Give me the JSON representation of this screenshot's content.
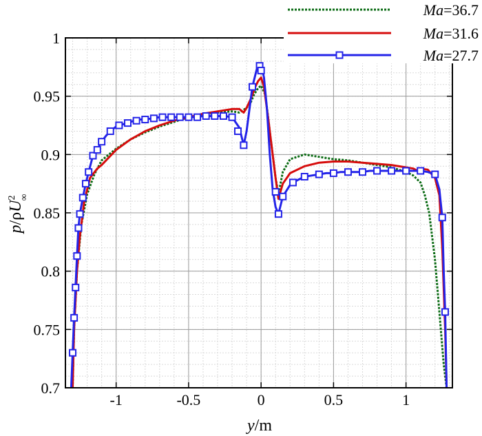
{
  "chart_data": {
    "type": "line",
    "xlabel": "y/m",
    "ylabel": "p/ρU∞²",
    "xlim": [
      -1.35,
      1.32
    ],
    "ylim": [
      0.7,
      1.0
    ],
    "xticks": [
      -1,
      -0.5,
      0,
      0.5,
      1
    ],
    "xtick_labels": [
      "-1",
      "-0.5",
      "0",
      "0.5",
      "1"
    ],
    "yticks": [
      0.7,
      0.75,
      0.8,
      0.85,
      0.9,
      0.95,
      1.0
    ],
    "ytick_labels": [
      "0.7",
      "0.75",
      "0.8",
      "0.85",
      "0.9",
      "0.95",
      "1"
    ],
    "grid": true,
    "legend_position": "top-right",
    "series": [
      {
        "name": "Ma=36.7",
        "name_italic": "Ma",
        "name_value": "=36.7",
        "color": "#0b6b14",
        "style": "dotted",
        "x": [
          -1.3,
          -1.29,
          -1.27,
          -1.24,
          -1.2,
          -1.15,
          -1.1,
          -1.0,
          -0.9,
          -0.8,
          -0.7,
          -0.6,
          -0.5,
          -0.4,
          -0.3,
          -0.2,
          -0.15,
          -0.1,
          -0.07,
          -0.05,
          -0.02,
          0.0,
          0.03,
          0.06,
          0.08,
          0.1,
          0.12,
          0.15,
          0.2,
          0.3,
          0.4,
          0.5,
          0.6,
          0.7,
          0.8,
          0.9,
          1.0,
          1.05,
          1.1,
          1.13,
          1.16,
          1.18,
          1.2,
          1.22,
          1.24,
          1.26,
          1.28
        ],
        "y": [
          0.7,
          0.75,
          0.8,
          0.84,
          0.866,
          0.883,
          0.895,
          0.905,
          0.913,
          0.919,
          0.924,
          0.928,
          0.932,
          0.934,
          0.936,
          0.937,
          0.936,
          0.94,
          0.945,
          0.951,
          0.957,
          0.959,
          0.951,
          0.92,
          0.9,
          0.88,
          0.866,
          0.885,
          0.896,
          0.9,
          0.898,
          0.896,
          0.895,
          0.893,
          0.891,
          0.889,
          0.885,
          0.882,
          0.876,
          0.865,
          0.85,
          0.83,
          0.81,
          0.78,
          0.75,
          0.72,
          0.7
        ]
      },
      {
        "name": "Ma=31.6",
        "name_italic": "Ma",
        "name_value": "=31.6",
        "color": "#d60c0c",
        "style": "solid",
        "x": [
          -1.3,
          -1.29,
          -1.27,
          -1.25,
          -1.22,
          -1.18,
          -1.13,
          -1.1,
          -1.0,
          -0.9,
          -0.8,
          -0.7,
          -0.6,
          -0.5,
          -0.4,
          -0.3,
          -0.2,
          -0.15,
          -0.12,
          -0.1,
          -0.07,
          -0.04,
          -0.02,
          0.0,
          0.02,
          0.05,
          0.08,
          0.1,
          0.12,
          0.15,
          0.2,
          0.3,
          0.4,
          0.5,
          0.6,
          0.7,
          0.8,
          0.9,
          1.0,
          1.05,
          1.08,
          1.1,
          1.15,
          1.2,
          1.23,
          1.25,
          1.27,
          1.28
        ],
        "y": [
          0.7,
          0.75,
          0.8,
          0.83,
          0.86,
          0.88,
          0.888,
          0.891,
          0.904,
          0.913,
          0.92,
          0.925,
          0.929,
          0.932,
          0.935,
          0.937,
          0.939,
          0.939,
          0.936,
          0.94,
          0.948,
          0.958,
          0.963,
          0.966,
          0.958,
          0.93,
          0.9,
          0.88,
          0.862,
          0.875,
          0.884,
          0.89,
          0.893,
          0.894,
          0.894,
          0.893,
          0.892,
          0.891,
          0.889,
          0.888,
          0.886,
          0.888,
          0.887,
          0.88,
          0.865,
          0.82,
          0.75,
          0.7
        ]
      },
      {
        "name": "Ma=27.7",
        "name_italic": "Ma",
        "name_value": "=27.7",
        "color": "#2323e8",
        "style": "solid-marker",
        "marker": "square",
        "x": [
          -1.31,
          -1.3,
          -1.29,
          -1.28,
          -1.27,
          -1.26,
          -1.25,
          -1.23,
          -1.21,
          -1.19,
          -1.16,
          -1.13,
          -1.1,
          -1.07,
          -1.04,
          -1.0,
          -0.95,
          -0.9,
          -0.85,
          -0.8,
          -0.75,
          -0.7,
          -0.65,
          -0.6,
          -0.55,
          -0.5,
          -0.45,
          -0.4,
          -0.35,
          -0.3,
          -0.25,
          -0.2,
          -0.15,
          -0.12,
          -0.1,
          -0.06,
          -0.03,
          -0.01,
          0.0,
          0.02,
          0.04,
          0.06,
          0.08,
          0.1,
          0.12,
          0.15,
          0.2,
          0.25,
          0.3,
          0.35,
          0.4,
          0.45,
          0.5,
          0.55,
          0.6,
          0.65,
          0.7,
          0.75,
          0.8,
          0.85,
          0.9,
          0.95,
          1.0,
          1.05,
          1.1,
          1.15,
          1.2,
          1.23,
          1.25,
          1.26,
          1.27,
          1.28
        ],
        "y": [
          0.7,
          0.73,
          0.76,
          0.786,
          0.813,
          0.837,
          0.849,
          0.863,
          0.875,
          0.885,
          0.899,
          0.904,
          0.911,
          0.916,
          0.92,
          0.924,
          0.926,
          0.928,
          0.93,
          0.93,
          0.931,
          0.932,
          0.932,
          0.932,
          0.932,
          0.932,
          0.932,
          0.933,
          0.933,
          0.933,
          0.933,
          0.932,
          0.923,
          0.908,
          0.92,
          0.958,
          0.973,
          0.976,
          0.977,
          0.966,
          0.94,
          0.9,
          0.87,
          0.855,
          0.849,
          0.864,
          0.874,
          0.878,
          0.881,
          0.882,
          0.883,
          0.884,
          0.884,
          0.885,
          0.885,
          0.885,
          0.885,
          0.886,
          0.886,
          0.886,
          0.886,
          0.886,
          0.886,
          0.886,
          0.886,
          0.885,
          0.883,
          0.87,
          0.846,
          0.8,
          0.765,
          0.7
        ],
        "marker_x": [
          -1.3,
          -1.29,
          -1.28,
          -1.27,
          -1.26,
          -1.25,
          -1.23,
          -1.21,
          -1.19,
          -1.16,
          -1.13,
          -1.1,
          -1.04,
          -0.98,
          -0.92,
          -0.86,
          -0.8,
          -0.74,
          -0.68,
          -0.62,
          -0.56,
          -0.5,
          -0.44,
          -0.38,
          -0.32,
          -0.26,
          -0.2,
          -0.16,
          -0.12,
          -0.06,
          -0.01,
          0.0,
          0.1,
          0.12,
          0.15,
          0.22,
          0.3,
          0.4,
          0.5,
          0.6,
          0.7,
          0.8,
          0.9,
          1.0,
          1.1,
          1.2,
          1.25,
          1.27
        ],
        "marker_y": [
          0.73,
          0.76,
          0.786,
          0.813,
          0.837,
          0.849,
          0.863,
          0.875,
          0.885,
          0.899,
          0.904,
          0.911,
          0.92,
          0.925,
          0.927,
          0.929,
          0.93,
          0.931,
          0.932,
          0.932,
          0.932,
          0.932,
          0.932,
          0.933,
          0.933,
          0.933,
          0.932,
          0.92,
          0.908,
          0.958,
          0.976,
          0.972,
          0.868,
          0.849,
          0.864,
          0.876,
          0.881,
          0.883,
          0.884,
          0.885,
          0.885,
          0.886,
          0.886,
          0.886,
          0.886,
          0.883,
          0.846,
          0.765
        ]
      }
    ]
  }
}
